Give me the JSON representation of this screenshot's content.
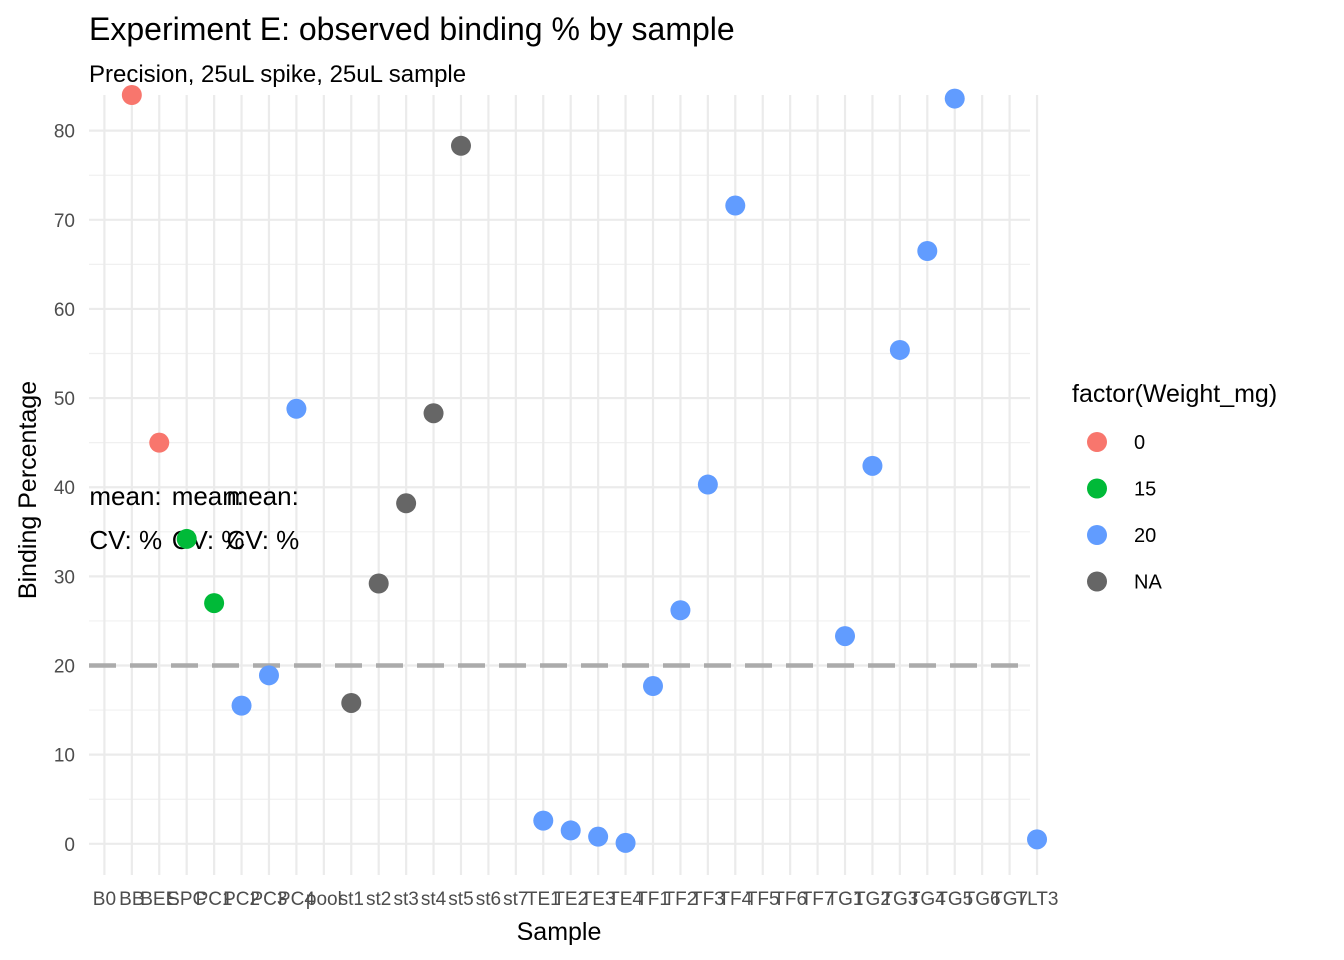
{
  "chart_data": {
    "type": "scatter",
    "title": "Experiment E: observed binding % by sample",
    "subtitle": "Precision, 25uL spike, 25uL sample",
    "xlabel": "Sample",
    "ylabel": "Binding Percentage",
    "ylim": [
      -3.5,
      84
    ],
    "yticks": [
      "0",
      "10",
      "20",
      "30",
      "40",
      "50",
      "60",
      "70",
      "80"
    ],
    "grid": true,
    "legend_position": "right",
    "legend_title": "factor(Weight_mg)",
    "legend": [
      {
        "label": "0",
        "color": "#F8766D"
      },
      {
        "label": "15",
        "color": "#00BA38"
      },
      {
        "label": "20",
        "color": "#619CFF"
      },
      {
        "label": "NA",
        "color": "#666666"
      }
    ],
    "categories": [
      "B0",
      "BB",
      "BEE",
      "SPC",
      "PC1",
      "PC2",
      "PC3",
      "PC4",
      "pool",
      "st1",
      "st2",
      "st3",
      "st4",
      "st5",
      "st6",
      "st7",
      "TE1",
      "TE2",
      "TE3",
      "TE4",
      "TF1",
      "TF2",
      "TF3",
      "TF4",
      "TF5",
      "TF6",
      "TF7",
      "TG1",
      "TG2",
      "TG3",
      "TG4",
      "TG5",
      "TG6",
      "TG7",
      "TLT3"
    ],
    "tick_labels": [
      "B0",
      "BB",
      "BEE",
      "SPC",
      "PC1",
      "PC2",
      "PC3",
      "PC4",
      "pool",
      "st1",
      "st2",
      "st3",
      "st4",
      "st5",
      "st6",
      "st7",
      "TE1",
      "TE2",
      "TE3",
      "TE4",
      "TF1",
      "TF2",
      "TF3",
      "TF4",
      "TF5",
      "TF6",
      "TF7",
      "TG1",
      "TG2",
      "TG3",
      "TG4",
      "TG5",
      "TG6",
      "TG7",
      "TLT3"
    ],
    "series": [
      {
        "name": "0",
        "color": "#F8766D",
        "points": [
          {
            "x": "BB",
            "y": 84.0
          },
          {
            "x": "BEE",
            "y": 45.0
          }
        ]
      },
      {
        "name": "15",
        "color": "#00BA38",
        "points": [
          {
            "x": "SPC",
            "y": 34.2
          },
          {
            "x": "PC1",
            "y": 27.0
          }
        ]
      },
      {
        "name": "20",
        "color": "#619CFF",
        "points": [
          {
            "x": "PC2",
            "y": 15.5
          },
          {
            "x": "PC3",
            "y": 18.9
          },
          {
            "x": "PC4",
            "y": 48.8
          },
          {
            "x": "TE1",
            "y": 2.6
          },
          {
            "x": "TE2",
            "y": 1.5
          },
          {
            "x": "TE3",
            "y": 0.8
          },
          {
            "x": "TE4",
            "y": 0.1
          },
          {
            "x": "TF1",
            "y": 17.7
          },
          {
            "x": "TF2",
            "y": 26.2
          },
          {
            "x": "TF3",
            "y": 40.3
          },
          {
            "x": "TF4",
            "y": 71.6
          },
          {
            "x": "TG1",
            "y": 23.3
          },
          {
            "x": "TG2",
            "y": 42.4
          },
          {
            "x": "TG3",
            "y": 55.4
          },
          {
            "x": "TG4",
            "y": 66.5
          },
          {
            "x": "TG5",
            "y": 83.6
          },
          {
            "x": "TLT3",
            "y": 0.5
          }
        ]
      },
      {
        "name": "NA",
        "color": "#666666",
        "points": [
          {
            "x": "st1",
            "y": 15.8
          },
          {
            "x": "st2",
            "y": 29.2
          },
          {
            "x": "st3",
            "y": 38.2
          },
          {
            "x": "st4",
            "y": 48.3
          },
          {
            "x": "st5",
            "y": 78.3
          }
        ]
      }
    ],
    "reference_line": {
      "y": 20,
      "style": "dashed",
      "color": "#ABABAB"
    },
    "annotations": [
      {
        "x": "B0",
        "y": 39,
        "lines": [
          "mean:",
          "CV: %"
        ]
      },
      {
        "x": "SPC",
        "y": 39,
        "lines": [
          "mean:",
          "CV: %"
        ]
      },
      {
        "x": "PC2",
        "y": 39,
        "lines": [
          "mean:",
          "CV: %"
        ]
      }
    ]
  }
}
